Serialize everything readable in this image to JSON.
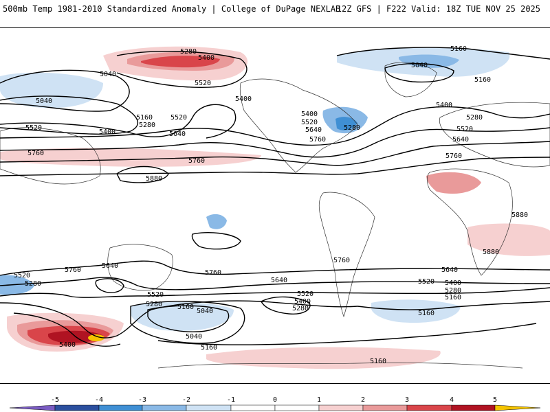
{
  "header": {
    "title_left": "500mb Temp 1981-2010 Standardized Anomaly | College of DuPage NEXLAB",
    "title_right": "12Z GFS | F222 Valid: 18Z TUE NOV 25 2025"
  },
  "colors": {
    "neg5": "#7a5cc2",
    "neg4": "#2b4f9e",
    "neg3": "#3f8fd4",
    "neg2": "#8ab9e6",
    "neg1": "#cfe2f4",
    "zero": "#ffffff",
    "pos1": "#f6d0d0",
    "pos2": "#e99a9a",
    "pos3": "#d9454a",
    "pos4": "#b01322",
    "pos5": "#f5c400"
  },
  "colorbar": {
    "ticks": [
      "-5",
      "-4",
      "-3",
      "-2",
      "-1",
      "0",
      "1",
      "2",
      "3",
      "4",
      "5"
    ]
  },
  "contour_labels": [
    {
      "id": "c1",
      "text": "5280"
    },
    {
      "id": "c2",
      "text": "5400"
    },
    {
      "id": "c3",
      "text": "5040"
    },
    {
      "id": "c4",
      "text": "5520"
    },
    {
      "id": "c5",
      "text": "5040"
    },
    {
      "id": "c6",
      "text": "5160"
    },
    {
      "id": "c7",
      "text": "5280"
    },
    {
      "id": "c8",
      "text": "5520"
    },
    {
      "id": "c9",
      "text": "5400"
    },
    {
      "id": "c10",
      "text": "5400"
    },
    {
      "id": "c11",
      "text": "5520"
    },
    {
      "id": "c12",
      "text": "5640"
    },
    {
      "id": "c13",
      "text": "5760"
    },
    {
      "id": "c14",
      "text": "5760"
    },
    {
      "id": "c15",
      "text": "5880"
    },
    {
      "id": "c16",
      "text": "5400"
    },
    {
      "id": "c17",
      "text": "5520"
    },
    {
      "id": "c18",
      "text": "5640"
    },
    {
      "id": "c19",
      "text": "5760"
    },
    {
      "id": "c20",
      "text": "5280"
    },
    {
      "id": "c21",
      "text": "5160"
    },
    {
      "id": "c22",
      "text": "5040"
    },
    {
      "id": "c23",
      "text": "5160"
    },
    {
      "id": "c24",
      "text": "5400"
    },
    {
      "id": "c25",
      "text": "5280"
    },
    {
      "id": "c26",
      "text": "5520"
    },
    {
      "id": "c27",
      "text": "5640"
    },
    {
      "id": "c28",
      "text": "5760"
    },
    {
      "id": "c29",
      "text": "5880"
    },
    {
      "id": "c30",
      "text": "5880"
    },
    {
      "id": "c31",
      "text": "5520"
    },
    {
      "id": "c32",
      "text": "5280"
    },
    {
      "id": "c33",
      "text": "5760"
    },
    {
      "id": "c34",
      "text": "5640"
    },
    {
      "id": "c35",
      "text": "5520"
    },
    {
      "id": "c36",
      "text": "5280"
    },
    {
      "id": "c37",
      "text": "5160"
    },
    {
      "id": "c38",
      "text": "5040"
    },
    {
      "id": "c39",
      "text": "5400"
    },
    {
      "id": "c40",
      "text": "5040"
    },
    {
      "id": "c41",
      "text": "5160"
    },
    {
      "id": "c42",
      "text": "5760"
    },
    {
      "id": "c43",
      "text": "5640"
    },
    {
      "id": "c44",
      "text": "5520"
    },
    {
      "id": "c45",
      "text": "5400"
    },
    {
      "id": "c46",
      "text": "5280"
    },
    {
      "id": "c47",
      "text": "5760"
    },
    {
      "id": "c48",
      "text": "5640"
    },
    {
      "id": "c49",
      "text": "5520"
    },
    {
      "id": "c50",
      "text": "5400"
    },
    {
      "id": "c51",
      "text": "5280"
    },
    {
      "id": "c52",
      "text": "5160"
    },
    {
      "id": "c53",
      "text": "5160"
    },
    {
      "id": "c54",
      "text": "5160"
    }
  ]
}
